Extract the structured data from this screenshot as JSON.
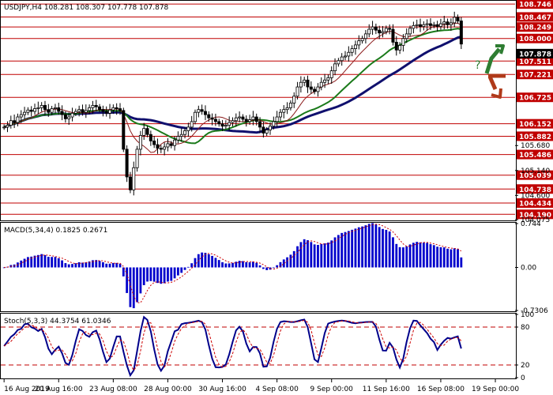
{
  "chart_data": [
    {
      "type": "candlestick",
      "title": "USDJPY,H4  108.281 108.307 107.778 107.878",
      "ylim": [
        104.075,
        108.8
      ],
      "current_price": "107.878",
      "ma_colors": {
        "fast": "#8b1a1a",
        "medium": "#1a7a1a",
        "slow": "#10106e"
      },
      "level_labels": [
        "108.746",
        "108.467",
        "108.249",
        "108.000",
        "107.511",
        "107.221",
        "106.725",
        "106.152",
        "105.882",
        "105.486",
        "105.039",
        "104.738",
        "104.434",
        "104.190"
      ],
      "level_values": [
        108.746,
        108.467,
        108.249,
        108.0,
        107.511,
        107.221,
        106.725,
        106.152,
        105.882,
        105.486,
        105.039,
        104.738,
        104.434,
        104.19
      ],
      "tick_labels": [
        "105.680",
        "105.140",
        "104.600",
        "104.075"
      ],
      "tick_values": [
        105.68,
        105.14,
        104.6,
        104.075
      ],
      "annotations": {
        "question": "?",
        "up_arrow_color": "#2e7d32",
        "down_arrow_color": "#b03a1a"
      },
      "closes": [
        106.08,
        106.12,
        106.22,
        106.18,
        106.3,
        106.35,
        106.4,
        106.45,
        106.42,
        106.48,
        106.5,
        106.55,
        106.46,
        106.4,
        106.48,
        106.5,
        106.42,
        106.35,
        106.26,
        106.3,
        106.38,
        106.42,
        106.46,
        106.4,
        106.44,
        106.5,
        106.55,
        106.52,
        106.46,
        106.42,
        106.38,
        106.45,
        106.5,
        106.48,
        106.44,
        105.6,
        105.0,
        104.72,
        105.2,
        105.6,
        105.9,
        106.05,
        105.92,
        105.78,
        105.7,
        105.62,
        105.6,
        105.65,
        105.72,
        105.68,
        105.8,
        105.88,
        105.92,
        106.0,
        106.08,
        106.2,
        106.4,
        106.46,
        106.42,
        106.35,
        106.28,
        106.25,
        106.2,
        106.15,
        106.1,
        106.12,
        106.18,
        106.22,
        106.28,
        106.3,
        106.25,
        106.2,
        106.24,
        106.3,
        106.2,
        106.08,
        105.95,
        106.02,
        106.1,
        106.2,
        106.3,
        106.4,
        106.46,
        106.5,
        106.6,
        106.75,
        106.95,
        107.05,
        107.1,
        106.95,
        106.9,
        106.85,
        106.95,
        107.05,
        107.1,
        107.15,
        107.3,
        107.45,
        107.52,
        107.6,
        107.62,
        107.7,
        107.78,
        107.86,
        107.95,
        108.0,
        108.1,
        108.2,
        108.25,
        108.18,
        108.12,
        108.15,
        108.22,
        108.2,
        107.92,
        107.75,
        107.85,
        108.0,
        108.1,
        108.22,
        108.28,
        108.3,
        108.26,
        108.3,
        108.32,
        108.28,
        108.3,
        108.26,
        108.32,
        108.36,
        108.3,
        108.34,
        108.46,
        108.38,
        107.88
      ]
    },
    {
      "type": "bar",
      "title": "MACD(5,34,4) 0.1825 0.2671",
      "ylim": [
        -0.7306,
        0.744
      ],
      "tick_labels": [
        "0.744",
        "0.00",
        "-0.7306"
      ],
      "tick_values": [
        0.744,
        0.0,
        -0.7306
      ],
      "colors": {
        "hist": "#0000cc",
        "signal": "#cc0000"
      }
    },
    {
      "type": "line",
      "title": "Stoch(5,3,3) 44.3754 61.0346",
      "ylim": [
        0,
        100
      ],
      "tick_labels": [
        "100",
        "80",
        "20",
        "0"
      ],
      "tick_values": [
        100,
        80,
        20,
        0
      ],
      "colors": {
        "main": "#00008b",
        "signal": "#cc0000"
      }
    }
  ],
  "x_axis": {
    "labels": [
      "16 Aug 2019",
      "20 Aug 16:00",
      "23 Aug 08:00",
      "28 Aug 00:00",
      "30 Aug 16:00",
      "4 Sep 08:00",
      "9 Sep 00:00",
      "11 Sep 16:00",
      "16 Sep 08:00",
      "19 Sep 00:00"
    ],
    "positions": [
      0,
      16,
      32,
      48,
      64,
      80,
      96,
      112,
      128,
      144
    ]
  }
}
